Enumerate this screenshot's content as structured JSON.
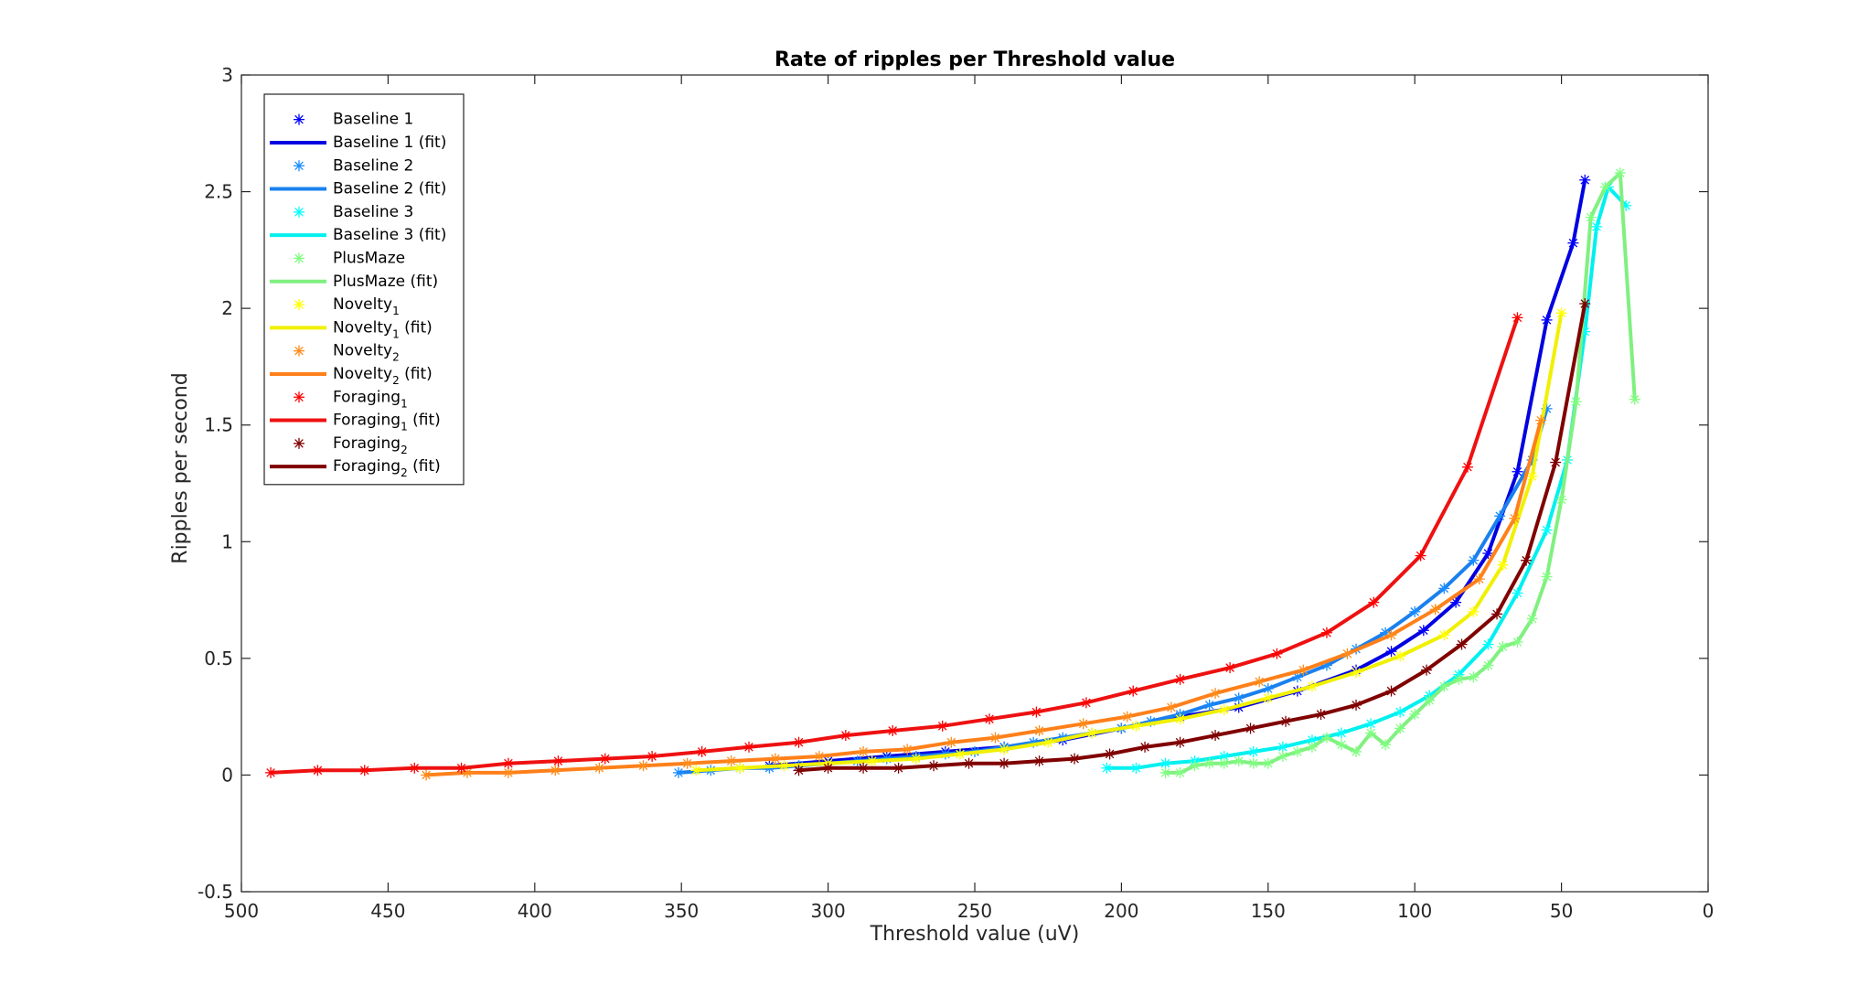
{
  "chart_data": {
    "type": "line",
    "title": "Rate of ripples per Threshold value",
    "xlabel": "Threshold value (uV)",
    "ylabel": "Ripples per second",
    "xlim": [
      0,
      500
    ],
    "x_reversed": true,
    "ylim": [
      -0.5,
      3
    ],
    "xticks": [
      500,
      450,
      400,
      350,
      300,
      250,
      200,
      150,
      100,
      50,
      0
    ],
    "yticks": [
      -0.5,
      0,
      0.5,
      1,
      1.5,
      2,
      2.5,
      3
    ],
    "ytick_labels": [
      "-0.5",
      "0",
      "0.5",
      "1",
      "1.5",
      "2",
      "2.5",
      "3"
    ],
    "grid": false,
    "legend_position": "top-left",
    "legend_entries": [
      {
        "text": "Baseline 1",
        "sub": "",
        "suffix": "",
        "kind": "marker",
        "color": "#0000ff"
      },
      {
        "text": "Baseline 1 (fit)",
        "sub": "",
        "suffix": "",
        "kind": "line",
        "color": "#0000e0"
      },
      {
        "text": "Baseline 2",
        "sub": "",
        "suffix": "",
        "kind": "marker",
        "color": "#1a8cff"
      },
      {
        "text": "Baseline 2 (fit)",
        "sub": "",
        "suffix": "",
        "kind": "line",
        "color": "#1a80ee"
      },
      {
        "text": "Baseline 3",
        "sub": "",
        "suffix": "",
        "kind": "marker",
        "color": "#00ffff"
      },
      {
        "text": "Baseline 3 (fit)",
        "sub": "",
        "suffix": "",
        "kind": "line",
        "color": "#00f0f0"
      },
      {
        "text": "PlusMaze",
        "sub": "",
        "suffix": "",
        "kind": "marker",
        "color": "#80ff80"
      },
      {
        "text": "PlusMaze (fit)",
        "sub": "",
        "suffix": "",
        "kind": "line",
        "color": "#80f080"
      },
      {
        "text": "Novelty",
        "sub": "1",
        "suffix": "",
        "kind": "marker",
        "color": "#ffff00"
      },
      {
        "text": "Novelty",
        "sub": "1",
        "suffix": " (fit)",
        "kind": "line",
        "color": "#f0f000"
      },
      {
        "text": "Novelty",
        "sub": "2",
        "suffix": "",
        "kind": "marker",
        "color": "#ff8c1a"
      },
      {
        "text": "Novelty",
        "sub": "2",
        "suffix": " (fit)",
        "kind": "line",
        "color": "#ff801a"
      },
      {
        "text": "Foraging",
        "sub": "1",
        "suffix": "",
        "kind": "marker",
        "color": "#ff0000"
      },
      {
        "text": "Foraging",
        "sub": "1",
        "suffix": " (fit)",
        "kind": "line",
        "color": "#ee1111"
      },
      {
        "text": "Foraging",
        "sub": "2",
        "suffix": "",
        "kind": "marker",
        "color": "#800000"
      },
      {
        "text": "Foraging",
        "sub": "2",
        "suffix": " (fit)",
        "kind": "line",
        "color": "#800000"
      }
    ],
    "series": [
      {
        "name": "Baseline 1",
        "color": "#0000ff",
        "fit_color": "#0000e0",
        "x": [
          320,
          300,
          280,
          260,
          240,
          220,
          200,
          180,
          160,
          140,
          120,
          108,
          97,
          86,
          75,
          65,
          55,
          46,
          42
        ],
        "y": [
          0.04,
          0.06,
          0.08,
          0.1,
          0.12,
          0.15,
          0.2,
          0.25,
          0.29,
          0.36,
          0.45,
          0.53,
          0.62,
          0.74,
          0.95,
          1.3,
          1.95,
          2.28,
          2.55
        ]
      },
      {
        "name": "Baseline 2",
        "color": "#1a8cff",
        "fit_color": "#1a80ee",
        "x": [
          351,
          340,
          330,
          320,
          310,
          300,
          290,
          280,
          270,
          260,
          250,
          240,
          230,
          220,
          210,
          200,
          190,
          180,
          170,
          160,
          150,
          140,
          130,
          120,
          110,
          100,
          90,
          80,
          71,
          60,
          55
        ],
        "y": [
          0.01,
          0.02,
          0.03,
          0.03,
          0.04,
          0.05,
          0.06,
          0.07,
          0.08,
          0.09,
          0.1,
          0.12,
          0.14,
          0.16,
          0.18,
          0.2,
          0.23,
          0.26,
          0.3,
          0.33,
          0.37,
          0.42,
          0.47,
          0.54,
          0.61,
          0.7,
          0.8,
          0.92,
          1.11,
          1.35,
          1.57
        ]
      },
      {
        "name": "Baseline 3",
        "color": "#00ffff",
        "fit_color": "#00f0f0",
        "x": [
          205,
          195,
          185,
          175,
          165,
          155,
          145,
          135,
          125,
          115,
          105,
          95,
          85,
          75,
          65,
          55,
          48,
          42,
          38,
          34,
          28
        ],
        "y": [
          0.03,
          0.03,
          0.05,
          0.06,
          0.08,
          0.1,
          0.12,
          0.15,
          0.18,
          0.22,
          0.27,
          0.34,
          0.43,
          0.56,
          0.78,
          1.05,
          1.35,
          1.9,
          2.35,
          2.52,
          2.44
        ]
      },
      {
        "name": "PlusMaze",
        "color": "#80ff80",
        "fit_color": "#80f080",
        "x": [
          185,
          180,
          175,
          170,
          165,
          160,
          155,
          150,
          145,
          140,
          135,
          130,
          125,
          120,
          115,
          110,
          105,
          100,
          95,
          90,
          85,
          80,
          75,
          70,
          65,
          60,
          55,
          50,
          45,
          40,
          35,
          30,
          25
        ],
        "y": [
          0.01,
          0.01,
          0.04,
          0.05,
          0.05,
          0.06,
          0.05,
          0.05,
          0.08,
          0.1,
          0.12,
          0.16,
          0.13,
          0.1,
          0.18,
          0.13,
          0.2,
          0.26,
          0.32,
          0.38,
          0.41,
          0.42,
          0.47,
          0.55,
          0.57,
          0.67,
          0.85,
          1.18,
          1.6,
          2.39,
          2.52,
          2.58,
          1.61
        ]
      },
      {
        "name": "Novelty1",
        "color": "#ffff00",
        "fit_color": "#f0f000",
        "x": [
          345,
          330,
          315,
          300,
          285,
          270,
          255,
          240,
          225,
          210,
          195,
          180,
          165,
          150,
          135,
          120,
          105,
          90,
          80,
          70,
          60,
          50
        ],
        "y": [
          0.02,
          0.03,
          0.04,
          0.05,
          0.06,
          0.07,
          0.09,
          0.11,
          0.14,
          0.18,
          0.21,
          0.24,
          0.28,
          0.33,
          0.38,
          0.44,
          0.51,
          0.6,
          0.7,
          0.9,
          1.28,
          1.98
        ]
      },
      {
        "name": "Novelty2",
        "color": "#ff8c1a",
        "fit_color": "#ff801a",
        "x": [
          437,
          423,
          409,
          393,
          378,
          363,
          348,
          333,
          318,
          303,
          288,
          273,
          258,
          243,
          228,
          213,
          198,
          183,
          168,
          153,
          138,
          123,
          108,
          93,
          78,
          66,
          57
        ],
        "y": [
          0.0,
          0.01,
          0.01,
          0.02,
          0.03,
          0.04,
          0.05,
          0.06,
          0.07,
          0.08,
          0.1,
          0.11,
          0.14,
          0.16,
          0.19,
          0.22,
          0.25,
          0.29,
          0.35,
          0.4,
          0.45,
          0.52,
          0.6,
          0.71,
          0.84,
          1.1,
          1.52
        ]
      },
      {
        "name": "Foraging1",
        "color": "#ff0000",
        "fit_color": "#ee1111",
        "x": [
          490,
          474,
          458,
          441,
          425,
          409,
          392,
          376,
          360,
          343,
          327,
          310,
          294,
          278,
          261,
          245,
          229,
          212,
          196,
          180,
          163,
          147,
          130,
          114,
          98,
          82,
          65
        ],
        "y": [
          0.01,
          0.02,
          0.02,
          0.03,
          0.03,
          0.05,
          0.06,
          0.07,
          0.08,
          0.1,
          0.12,
          0.14,
          0.17,
          0.19,
          0.21,
          0.24,
          0.27,
          0.31,
          0.36,
          0.41,
          0.46,
          0.52,
          0.61,
          0.74,
          0.94,
          1.32,
          1.96
        ]
      },
      {
        "name": "Foraging2",
        "color": "#800000",
        "fit_color": "#800000",
        "x": [
          310,
          300,
          288,
          276,
          264,
          252,
          240,
          228,
          216,
          204,
          192,
          180,
          168,
          156,
          144,
          132,
          120,
          108,
          96,
          84,
          72,
          62,
          52,
          42
        ],
        "y": [
          0.02,
          0.03,
          0.03,
          0.03,
          0.04,
          0.05,
          0.05,
          0.06,
          0.07,
          0.09,
          0.12,
          0.14,
          0.17,
          0.2,
          0.23,
          0.26,
          0.3,
          0.36,
          0.45,
          0.56,
          0.69,
          0.92,
          1.34,
          2.02
        ]
      }
    ]
  }
}
